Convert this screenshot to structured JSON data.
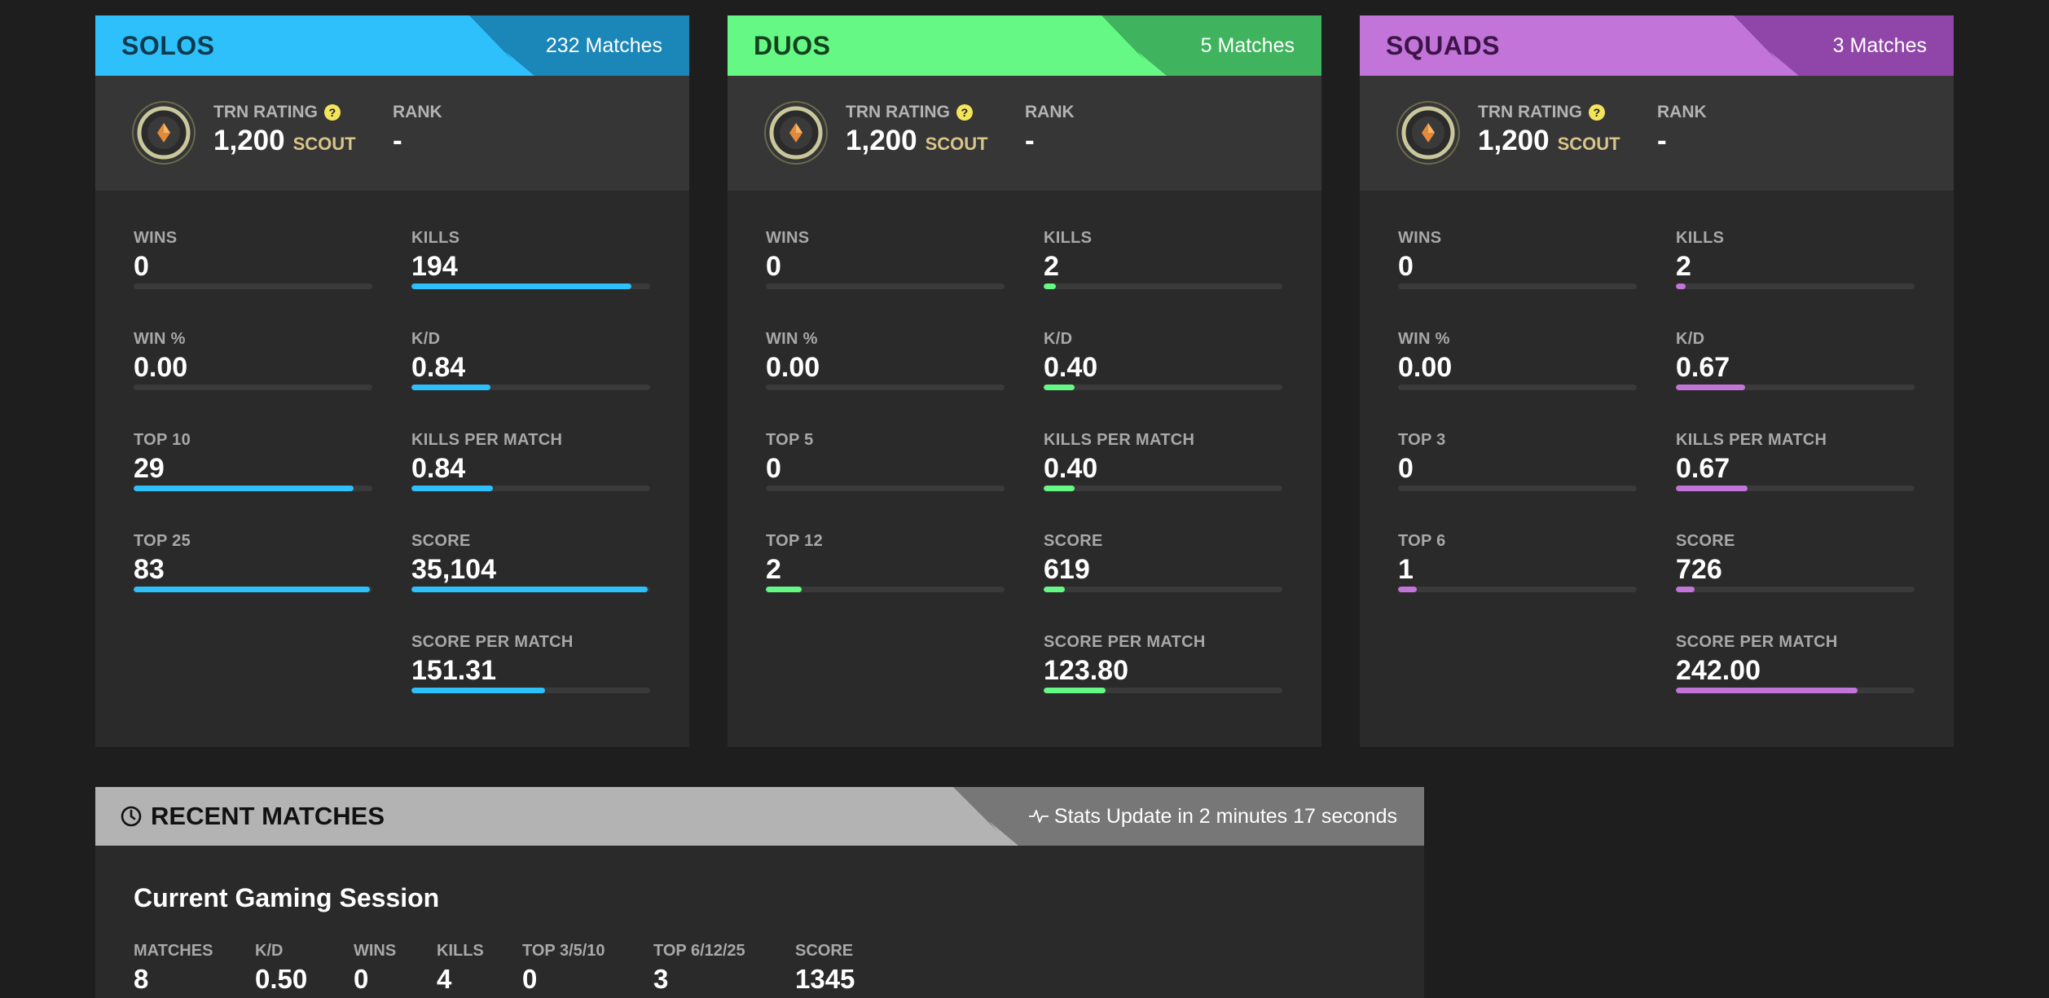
{
  "cards": [
    {
      "title": "SOLOS",
      "matches": "232 Matches",
      "colors": {
        "header": "#2ec0fb",
        "header_dark": "#1b86b8",
        "title_text": "#0f3a4d",
        "bar": "#2ec0fb"
      },
      "rating_label": "TRN RATING",
      "rating_value": "1,200",
      "rating_tier": "SCOUT",
      "rank_label": "RANK",
      "rank_value": "-",
      "stats": [
        {
          "label": "WINS",
          "value": "0",
          "fill": 0.0
        },
        {
          "label": "KILLS",
          "value": "194",
          "fill": 0.92
        },
        {
          "label": "WIN %",
          "value": "0.00",
          "fill": 0.0
        },
        {
          "label": "K/D",
          "value": "0.84",
          "fill": 0.33
        },
        {
          "label": "TOP 10",
          "value": "29",
          "fill": 0.92
        },
        {
          "label": "KILLS PER MATCH",
          "value": "0.84",
          "fill": 0.34
        },
        {
          "label": "TOP 25",
          "value": "83",
          "fill": 0.99
        },
        {
          "label": "SCORE",
          "value": "35,104",
          "fill": 0.99
        },
        {
          "label": "SCORE PER MATCH",
          "value": "151.31",
          "fill": 0.56
        }
      ]
    },
    {
      "title": "DUOS",
      "matches": "5 Matches",
      "colors": {
        "header": "#66f884",
        "header_dark": "#3fb35d",
        "title_text": "#14421f",
        "bar": "#66f884"
      },
      "rating_label": "TRN RATING",
      "rating_value": "1,200",
      "rating_tier": "SCOUT",
      "rank_label": "RANK",
      "rank_value": "-",
      "stats": [
        {
          "label": "WINS",
          "value": "0",
          "fill": 0.0
        },
        {
          "label": "KILLS",
          "value": "2",
          "fill": 0.05
        },
        {
          "label": "WIN %",
          "value": "0.00",
          "fill": 0.0
        },
        {
          "label": "K/D",
          "value": "0.40",
          "fill": 0.13
        },
        {
          "label": "TOP 5",
          "value": "0",
          "fill": 0.0
        },
        {
          "label": "KILLS PER MATCH",
          "value": "0.40",
          "fill": 0.13
        },
        {
          "label": "TOP 12",
          "value": "2",
          "fill": 0.15
        },
        {
          "label": "SCORE",
          "value": "619",
          "fill": 0.09
        },
        {
          "label": "SCORE PER MATCH",
          "value": "123.80",
          "fill": 0.26
        }
      ]
    },
    {
      "title": "SQUADS",
      "matches": "3 Matches",
      "colors": {
        "header": "#c274d9",
        "header_dark": "#8f46a8",
        "title_text": "#3c1448",
        "bar": "#c274d9"
      },
      "rating_label": "TRN RATING",
      "rating_value": "1,200",
      "rating_tier": "SCOUT",
      "rank_label": "RANK",
      "rank_value": "-",
      "stats": [
        {
          "label": "WINS",
          "value": "0",
          "fill": 0.0
        },
        {
          "label": "KILLS",
          "value": "2",
          "fill": 0.04
        },
        {
          "label": "WIN %",
          "value": "0.00",
          "fill": 0.0
        },
        {
          "label": "K/D",
          "value": "0.67",
          "fill": 0.29
        },
        {
          "label": "TOP 3",
          "value": "0",
          "fill": 0.0
        },
        {
          "label": "KILLS PER MATCH",
          "value": "0.67",
          "fill": 0.3
        },
        {
          "label": "TOP 6",
          "value": "1",
          "fill": 0.08
        },
        {
          "label": "SCORE",
          "value": "726",
          "fill": 0.08
        },
        {
          "label": "SCORE PER MATCH",
          "value": "242.00",
          "fill": 0.76
        }
      ]
    }
  ],
  "recent": {
    "title": "RECENT MATCHES",
    "update_text": "Stats Update in 2 minutes 17 seconds",
    "session_title": "Current Gaming Session",
    "stats": [
      {
        "label": "MATCHES",
        "value": "8"
      },
      {
        "label": "K/D",
        "value": "0.50"
      },
      {
        "label": "WINS",
        "value": "0"
      },
      {
        "label": "KILLS",
        "value": "4"
      },
      {
        "label": "TOP 3/5/10",
        "value": "0"
      },
      {
        "label": "TOP 6/12/25",
        "value": "3"
      },
      {
        "label": "SCORE",
        "value": "1345"
      }
    ]
  }
}
